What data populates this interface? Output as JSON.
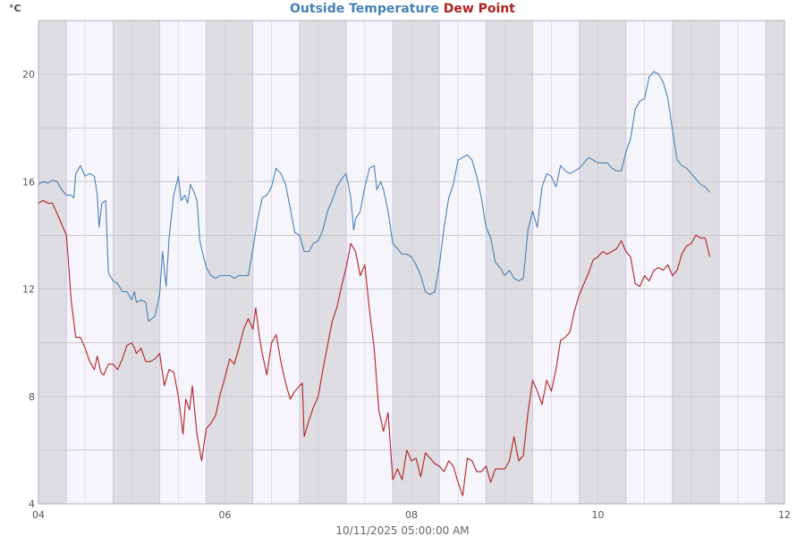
{
  "chart_data": {
    "type": "line",
    "title_parts": [
      {
        "text": "Outside Temperature",
        "color": "#4682b4"
      },
      {
        "text": " ",
        "color": "#4682b4"
      },
      {
        "text": "Dew Point",
        "color": "#b22222"
      }
    ],
    "unit_label": "°C",
    "xlabel": "10/11/2025 05:00:00 AM",
    "x_range_days": [
      4,
      12
    ],
    "ylim": [
      4,
      22
    ],
    "y_ticks": [
      4,
      8,
      12,
      16,
      20
    ],
    "x_ticks": [
      {
        "day": 4,
        "label": "04"
      },
      {
        "day": 6,
        "label": "06"
      },
      {
        "day": 8,
        "label": "08"
      },
      {
        "day": 10,
        "label": "10"
      },
      {
        "day": 12,
        "label": "12"
      }
    ],
    "night_bands_days": [
      [
        4.0,
        4.3
      ],
      [
        4.8,
        5.3
      ],
      [
        5.8,
        6.3
      ],
      [
        6.8,
        7.3
      ],
      [
        7.8,
        8.3
      ],
      [
        8.8,
        9.3
      ],
      [
        9.8,
        10.3
      ],
      [
        10.8,
        11.3
      ],
      [
        11.8,
        12.0
      ]
    ],
    "series": [
      {
        "name": "Outside Temperature",
        "color": "#4682b4",
        "points": [
          [
            4.0,
            15.9
          ],
          [
            4.05,
            16.0
          ],
          [
            4.1,
            15.95
          ],
          [
            4.15,
            16.05
          ],
          [
            4.2,
            16.0
          ],
          [
            4.25,
            15.7
          ],
          [
            4.3,
            15.5
          ],
          [
            4.35,
            15.5
          ],
          [
            4.38,
            15.4
          ],
          [
            4.4,
            16.3
          ],
          [
            4.45,
            16.6
          ],
          [
            4.5,
            16.2
          ],
          [
            4.55,
            16.3
          ],
          [
            4.6,
            16.2
          ],
          [
            4.63,
            15.5
          ],
          [
            4.65,
            14.3
          ],
          [
            4.68,
            15.2
          ],
          [
            4.72,
            15.3
          ],
          [
            4.75,
            12.6
          ],
          [
            4.8,
            12.3
          ],
          [
            4.85,
            12.2
          ],
          [
            4.9,
            11.9
          ],
          [
            4.95,
            11.9
          ],
          [
            5.0,
            11.6
          ],
          [
            5.03,
            11.9
          ],
          [
            5.05,
            11.5
          ],
          [
            5.1,
            11.6
          ],
          [
            5.15,
            11.5
          ],
          [
            5.18,
            10.8
          ],
          [
            5.22,
            10.9
          ],
          [
            5.25,
            11.0
          ],
          [
            5.3,
            11.8
          ],
          [
            5.33,
            13.4
          ],
          [
            5.35,
            12.7
          ],
          [
            5.37,
            12.1
          ],
          [
            5.4,
            13.9
          ],
          [
            5.45,
            15.5
          ],
          [
            5.5,
            16.2
          ],
          [
            5.53,
            15.3
          ],
          [
            5.57,
            15.5
          ],
          [
            5.6,
            15.2
          ],
          [
            5.63,
            15.9
          ],
          [
            5.67,
            15.6
          ],
          [
            5.7,
            15.3
          ],
          [
            5.73,
            13.8
          ],
          [
            5.77,
            13.2
          ],
          [
            5.8,
            12.8
          ],
          [
            5.85,
            12.5
          ],
          [
            5.9,
            12.4
          ],
          [
            5.95,
            12.5
          ],
          [
            6.0,
            12.5
          ],
          [
            6.05,
            12.5
          ],
          [
            6.1,
            12.4
          ],
          [
            6.15,
            12.5
          ],
          [
            6.2,
            12.5
          ],
          [
            6.25,
            12.5
          ],
          [
            6.3,
            13.5
          ],
          [
            6.35,
            14.6
          ],
          [
            6.4,
            15.4
          ],
          [
            6.45,
            15.5
          ],
          [
            6.5,
            15.8
          ],
          [
            6.55,
            16.5
          ],
          [
            6.6,
            16.3
          ],
          [
            6.65,
            15.9
          ],
          [
            6.7,
            15.0
          ],
          [
            6.75,
            14.1
          ],
          [
            6.8,
            14.0
          ],
          [
            6.85,
            13.4
          ],
          [
            6.9,
            13.4
          ],
          [
            6.95,
            13.7
          ],
          [
            7.0,
            13.8
          ],
          [
            7.05,
            14.2
          ],
          [
            7.1,
            14.9
          ],
          [
            7.15,
            15.3
          ],
          [
            7.2,
            15.8
          ],
          [
            7.25,
            16.1
          ],
          [
            7.3,
            16.3
          ],
          [
            7.35,
            15.4
          ],
          [
            7.38,
            14.2
          ],
          [
            7.4,
            14.6
          ],
          [
            7.45,
            14.9
          ],
          [
            7.5,
            15.8
          ],
          [
            7.55,
            16.5
          ],
          [
            7.6,
            16.6
          ],
          [
            7.63,
            15.7
          ],
          [
            7.67,
            16.0
          ],
          [
            7.7,
            15.7
          ],
          [
            7.75,
            14.9
          ],
          [
            7.8,
            13.7
          ],
          [
            7.85,
            13.5
          ],
          [
            7.9,
            13.3
          ],
          [
            7.95,
            13.3
          ],
          [
            8.0,
            13.2
          ],
          [
            8.05,
            12.9
          ],
          [
            8.1,
            12.5
          ],
          [
            8.15,
            11.9
          ],
          [
            8.2,
            11.8
          ],
          [
            8.25,
            11.9
          ],
          [
            8.3,
            12.9
          ],
          [
            8.35,
            14.3
          ],
          [
            8.4,
            15.4
          ],
          [
            8.45,
            15.9
          ],
          [
            8.5,
            16.8
          ],
          [
            8.55,
            16.9
          ],
          [
            8.6,
            17.0
          ],
          [
            8.65,
            16.8
          ],
          [
            8.7,
            16.2
          ],
          [
            8.75,
            15.4
          ],
          [
            8.8,
            14.3
          ],
          [
            8.85,
            13.9
          ],
          [
            8.9,
            13.0
          ],
          [
            8.95,
            12.8
          ],
          [
            9.0,
            12.5
          ],
          [
            9.05,
            12.7
          ],
          [
            9.1,
            12.4
          ],
          [
            9.15,
            12.3
          ],
          [
            9.2,
            12.4
          ],
          [
            9.25,
            14.2
          ],
          [
            9.3,
            14.9
          ],
          [
            9.35,
            14.3
          ],
          [
            9.4,
            15.8
          ],
          [
            9.45,
            16.3
          ],
          [
            9.5,
            16.2
          ],
          [
            9.55,
            15.8
          ],
          [
            9.6,
            16.6
          ],
          [
            9.65,
            16.4
          ],
          [
            9.7,
            16.3
          ],
          [
            9.75,
            16.4
          ],
          [
            9.8,
            16.5
          ],
          [
            9.85,
            16.7
          ],
          [
            9.9,
            16.9
          ],
          [
            9.95,
            16.8
          ],
          [
            10.0,
            16.7
          ],
          [
            10.05,
            16.7
          ],
          [
            10.1,
            16.7
          ],
          [
            10.15,
            16.5
          ],
          [
            10.2,
            16.4
          ],
          [
            10.25,
            16.4
          ],
          [
            10.3,
            17.1
          ],
          [
            10.35,
            17.6
          ],
          [
            10.4,
            18.7
          ],
          [
            10.45,
            19.0
          ],
          [
            10.5,
            19.1
          ],
          [
            10.55,
            19.9
          ],
          [
            10.6,
            20.1
          ],
          [
            10.65,
            20.0
          ],
          [
            10.7,
            19.7
          ],
          [
            10.75,
            19.1
          ],
          [
            10.8,
            17.9
          ],
          [
            10.85,
            16.8
          ],
          [
            10.9,
            16.6
          ],
          [
            10.95,
            16.5
          ],
          [
            11.0,
            16.3
          ],
          [
            11.05,
            16.1
          ],
          [
            11.1,
            15.9
          ],
          [
            11.15,
            15.8
          ],
          [
            11.2,
            15.6
          ]
        ]
      },
      {
        "name": "Dew Point",
        "color": "#b22222",
        "points": [
          [
            4.0,
            15.2
          ],
          [
            4.05,
            15.3
          ],
          [
            4.1,
            15.2
          ],
          [
            4.15,
            15.2
          ],
          [
            4.2,
            14.8
          ],
          [
            4.25,
            14.4
          ],
          [
            4.3,
            14.0
          ],
          [
            4.35,
            11.6
          ],
          [
            4.4,
            10.2
          ],
          [
            4.45,
            10.2
          ],
          [
            4.5,
            9.8
          ],
          [
            4.55,
            9.3
          ],
          [
            4.6,
            9.0
          ],
          [
            4.63,
            9.5
          ],
          [
            4.67,
            8.9
          ],
          [
            4.7,
            8.8
          ],
          [
            4.75,
            9.2
          ],
          [
            4.8,
            9.2
          ],
          [
            4.85,
            9.0
          ],
          [
            4.9,
            9.4
          ],
          [
            4.95,
            9.9
          ],
          [
            5.0,
            10.0
          ],
          [
            5.03,
            9.8
          ],
          [
            5.05,
            9.6
          ],
          [
            5.1,
            9.8
          ],
          [
            5.15,
            9.3
          ],
          [
            5.2,
            9.3
          ],
          [
            5.25,
            9.4
          ],
          [
            5.3,
            9.6
          ],
          [
            5.35,
            8.4
          ],
          [
            5.4,
            9.0
          ],
          [
            5.45,
            8.9
          ],
          [
            5.5,
            8.0
          ],
          [
            5.55,
            6.6
          ],
          [
            5.58,
            7.9
          ],
          [
            5.62,
            7.5
          ],
          [
            5.65,
            8.4
          ],
          [
            5.7,
            6.6
          ],
          [
            5.75,
            5.6
          ],
          [
            5.8,
            6.8
          ],
          [
            5.85,
            7.0
          ],
          [
            5.9,
            7.3
          ],
          [
            5.95,
            8.1
          ],
          [
            6.0,
            8.7
          ],
          [
            6.05,
            9.4
          ],
          [
            6.1,
            9.2
          ],
          [
            6.15,
            9.8
          ],
          [
            6.2,
            10.5
          ],
          [
            6.25,
            10.9
          ],
          [
            6.3,
            10.5
          ],
          [
            6.33,
            11.3
          ],
          [
            6.37,
            10.2
          ],
          [
            6.4,
            9.6
          ],
          [
            6.45,
            8.8
          ],
          [
            6.5,
            10.0
          ],
          [
            6.55,
            10.3
          ],
          [
            6.6,
            9.3
          ],
          [
            6.65,
            8.5
          ],
          [
            6.7,
            7.9
          ],
          [
            6.75,
            8.2
          ],
          [
            6.8,
            8.4
          ],
          [
            6.83,
            8.5
          ],
          [
            6.85,
            6.5
          ],
          [
            6.9,
            7.1
          ],
          [
            6.95,
            7.6
          ],
          [
            7.0,
            8.0
          ],
          [
            7.05,
            9.0
          ],
          [
            7.1,
            9.9
          ],
          [
            7.15,
            10.8
          ],
          [
            7.2,
            11.3
          ],
          [
            7.25,
            12.1
          ],
          [
            7.3,
            12.8
          ],
          [
            7.35,
            13.7
          ],
          [
            7.4,
            13.4
          ],
          [
            7.45,
            12.5
          ],
          [
            7.5,
            12.9
          ],
          [
            7.55,
            11.2
          ],
          [
            7.6,
            9.8
          ],
          [
            7.65,
            7.5
          ],
          [
            7.7,
            6.7
          ],
          [
            7.75,
            7.4
          ],
          [
            7.8,
            4.9
          ],
          [
            7.85,
            5.3
          ],
          [
            7.9,
            4.9
          ],
          [
            7.95,
            6.0
          ],
          [
            8.0,
            5.6
          ],
          [
            8.05,
            5.7
          ],
          [
            8.1,
            5.0
          ],
          [
            8.15,
            5.9
          ],
          [
            8.2,
            5.7
          ],
          [
            8.25,
            5.5
          ],
          [
            8.3,
            5.4
          ],
          [
            8.35,
            5.2
          ],
          [
            8.4,
            5.6
          ],
          [
            8.45,
            5.4
          ],
          [
            8.5,
            4.8
          ],
          [
            8.55,
            4.3
          ],
          [
            8.6,
            5.7
          ],
          [
            8.65,
            5.6
          ],
          [
            8.7,
            5.2
          ],
          [
            8.75,
            5.2
          ],
          [
            8.8,
            5.4
          ],
          [
            8.85,
            4.8
          ],
          [
            8.9,
            5.3
          ],
          [
            8.95,
            5.3
          ],
          [
            9.0,
            5.3
          ],
          [
            9.05,
            5.6
          ],
          [
            9.1,
            6.5
          ],
          [
            9.15,
            5.6
          ],
          [
            9.2,
            5.8
          ],
          [
            9.25,
            7.4
          ],
          [
            9.3,
            8.6
          ],
          [
            9.35,
            8.2
          ],
          [
            9.4,
            7.7
          ],
          [
            9.45,
            8.6
          ],
          [
            9.5,
            8.2
          ],
          [
            9.55,
            9.0
          ],
          [
            9.6,
            10.1
          ],
          [
            9.65,
            10.2
          ],
          [
            9.7,
            10.4
          ],
          [
            9.75,
            11.2
          ],
          [
            9.8,
            11.8
          ],
          [
            9.85,
            12.2
          ],
          [
            9.9,
            12.6
          ],
          [
            9.95,
            13.1
          ],
          [
            10.0,
            13.2
          ],
          [
            10.05,
            13.4
          ],
          [
            10.1,
            13.3
          ],
          [
            10.15,
            13.4
          ],
          [
            10.2,
            13.5
          ],
          [
            10.25,
            13.8
          ],
          [
            10.3,
            13.4
          ],
          [
            10.35,
            13.2
          ],
          [
            10.4,
            12.2
          ],
          [
            10.45,
            12.1
          ],
          [
            10.5,
            12.5
          ],
          [
            10.55,
            12.3
          ],
          [
            10.6,
            12.7
          ],
          [
            10.65,
            12.8
          ],
          [
            10.7,
            12.7
          ],
          [
            10.75,
            12.9
          ],
          [
            10.8,
            12.5
          ],
          [
            10.85,
            12.7
          ],
          [
            10.9,
            13.3
          ],
          [
            10.95,
            13.6
          ],
          [
            11.0,
            13.7
          ],
          [
            11.05,
            14.0
          ],
          [
            11.1,
            13.9
          ],
          [
            11.15,
            13.9
          ],
          [
            11.2,
            13.2
          ]
        ]
      }
    ]
  }
}
